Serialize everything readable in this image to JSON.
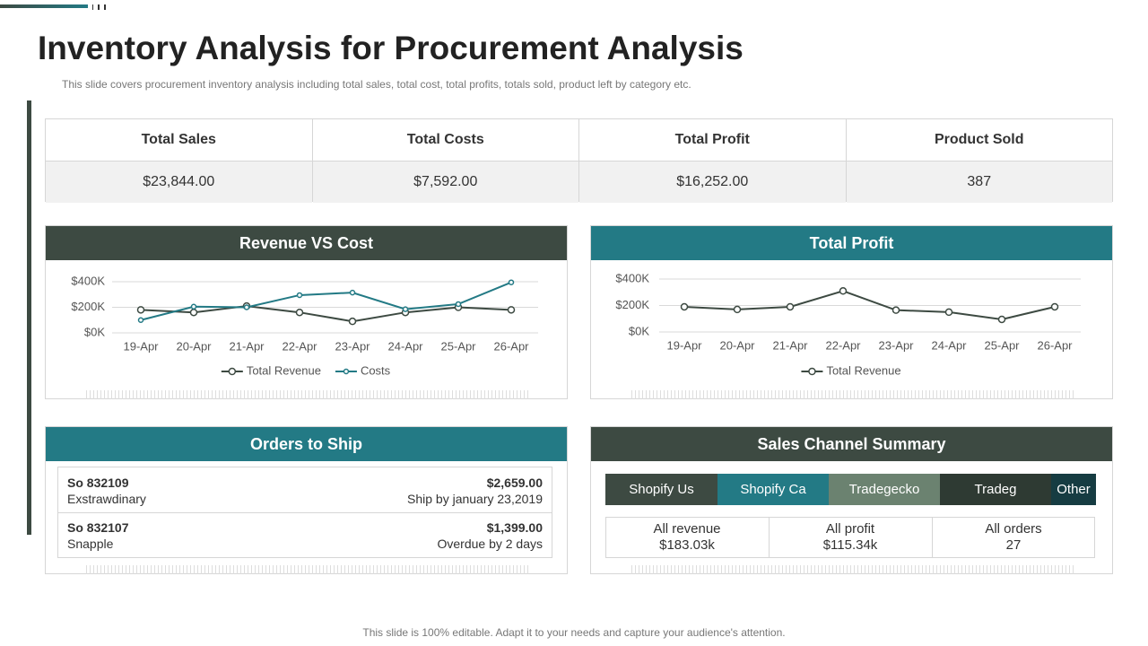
{
  "header": {
    "title": "Inventory Analysis for Procurement Analysis",
    "subtitle": "This slide covers procurement inventory analysis including total sales, total cost, total profits, totals sold, product left by category etc."
  },
  "kpis": [
    {
      "label": "Total Sales",
      "value": "$23,844.00"
    },
    {
      "label": "Total Costs",
      "value": "$7,592.00"
    },
    {
      "label": "Total Profit",
      "value": "$16,252.00"
    },
    {
      "label": "Product Sold",
      "value": "387"
    }
  ],
  "chart_data": [
    {
      "type": "line",
      "title": "Revenue VS Cost",
      "categories": [
        "19-Apr",
        "20-Apr",
        "21-Apr",
        "22-Apr",
        "23-Apr",
        "24-Apr",
        "25-Apr",
        "26-Apr"
      ],
      "series": [
        {
          "name": "Total Revenue",
          "color": "#3d4a42",
          "values": [
            180000,
            160000,
            210000,
            160000,
            90000,
            160000,
            200000,
            180000
          ]
        },
        {
          "name": "Costs",
          "color": "#237a85",
          "values": [
            100000,
            205000,
            200000,
            295000,
            315000,
            185000,
            225000,
            395000
          ]
        }
      ],
      "ylim": [
        0,
        400000
      ],
      "yticks": [
        {
          "value": 0,
          "label": "$0K"
        },
        {
          "value": 200000,
          "label": "$200K"
        },
        {
          "value": 400000,
          "label": "$400K"
        }
      ],
      "grid": true,
      "legend": "bottom"
    },
    {
      "type": "line",
      "title": "Total Profit",
      "categories": [
        "19-Apr",
        "20-Apr",
        "21-Apr",
        "22-Apr",
        "23-Apr",
        "24-Apr",
        "25-Apr",
        "26-Apr"
      ],
      "series": [
        {
          "name": "Total Revenue",
          "color": "#3d4a42",
          "values": [
            190000,
            170000,
            190000,
            310000,
            165000,
            150000,
            95000,
            190000
          ]
        }
      ],
      "ylim": [
        0,
        400000
      ],
      "yticks": [
        {
          "value": 0,
          "label": "$0K"
        },
        {
          "value": 200000,
          "label": "$200K"
        },
        {
          "value": 400000,
          "label": "$400K"
        }
      ],
      "grid": true,
      "legend": "bottom"
    }
  ],
  "orders": {
    "title": "Orders to Ship",
    "items": [
      {
        "id": "So 832109",
        "name": "Exstrawdinary",
        "amount": "$2,659.00",
        "status": "Ship by january 23,2019"
      },
      {
        "id": "So 832107",
        "name": "Snapple",
        "amount": "$1,399.00",
        "status": "Overdue by 2 days"
      }
    ]
  },
  "sales_channel": {
    "title": "Sales Channel Summary",
    "channels": [
      "Shopify Us",
      "Shopify Ca",
      "Tradegecko",
      "Tradeg",
      "Other"
    ],
    "stats": [
      {
        "label": "All revenue",
        "value": "$183.03k"
      },
      {
        "label": "All profit",
        "value": "$115.34k"
      },
      {
        "label": "All orders",
        "value": "27"
      }
    ]
  },
  "footer": "This slide is 100% editable. Adapt it to your needs and capture your audience's attention."
}
